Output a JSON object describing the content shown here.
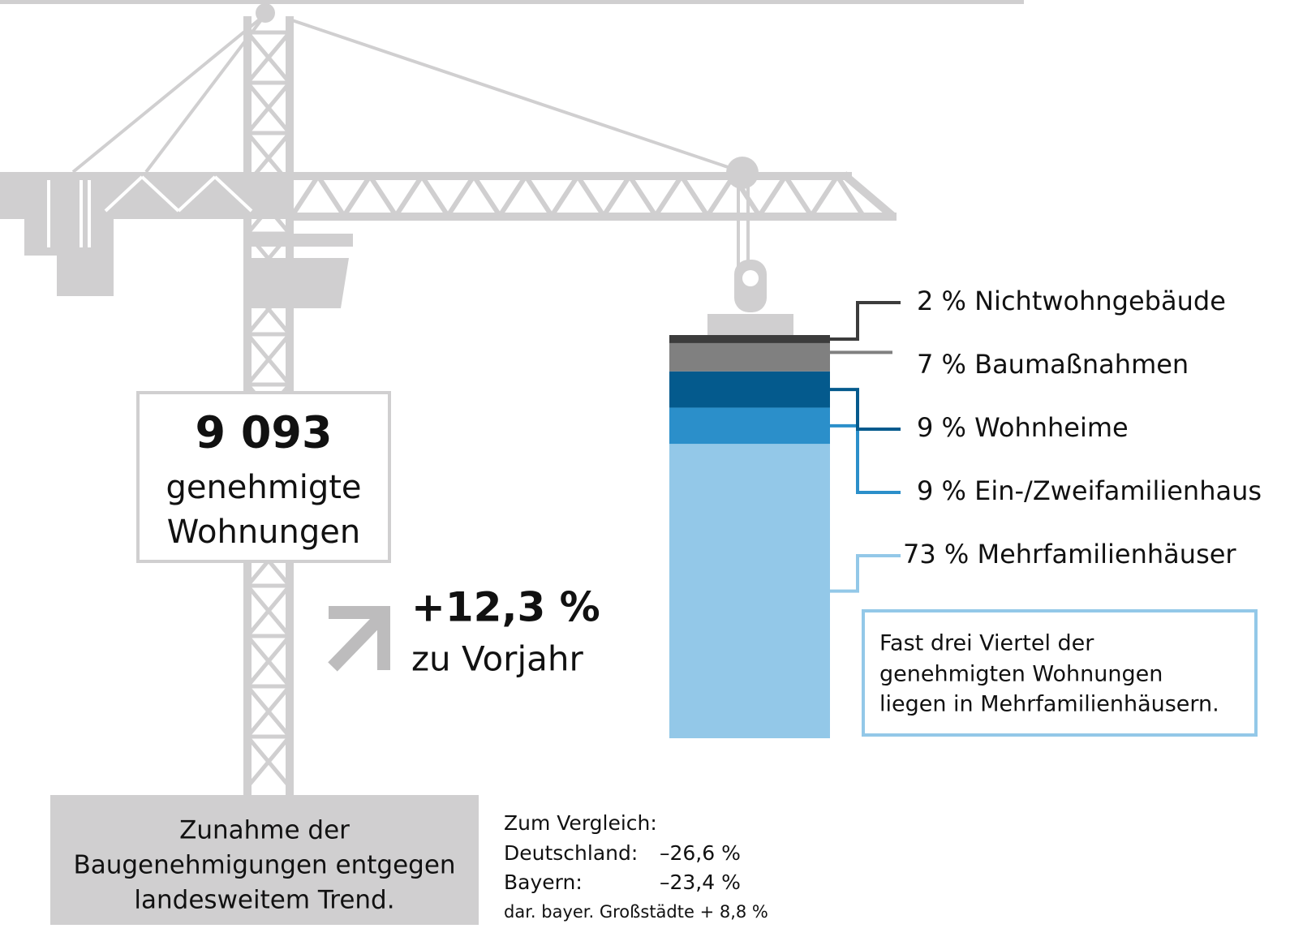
{
  "chart_data": {
    "type": "stacked-bar",
    "ylim": [
      0,
      100
    ],
    "series": [
      {
        "name": "Mehrfamilienhäuser",
        "color": "#93c8e8",
        "values": [
          73
        ],
        "value_labels": [
          "73 %"
        ]
      },
      {
        "name": "Ein-/Zweifamilienhaus",
        "color": "#2b8fca",
        "values": [
          9
        ],
        "value_labels": [
          "9 %"
        ]
      },
      {
        "name": "Wohnheime",
        "color": "#045a8d",
        "values": [
          9
        ],
        "value_labels": [
          "9 %"
        ]
      },
      {
        "name": "Baumaßnahmen",
        "color": "#808080",
        "values": [
          7
        ],
        "value_labels": [
          "7 %"
        ]
      },
      {
        "name": "Nichtwohngebäude",
        "color": "#3c3c3c",
        "values": [
          2
        ],
        "value_labels": [
          "2 %"
        ]
      }
    ]
  },
  "infographic": {
    "total": {
      "number": "9 093",
      "lines": [
        "genehmigte",
        "Wohnungen"
      ]
    },
    "change": {
      "value": "+12,3 %",
      "label": "zu Vorjahr"
    },
    "note": [
      "Fast drei Viertel der",
      "genehmigten Wohnungen",
      "liegen in Mehrfamilienhäusern."
    ],
    "trend": [
      "Zunahme der",
      "Baugenehmigungen entgegen",
      "landesweitem Trend."
    ],
    "comparison": {
      "title": "Zum Vergleich:",
      "rows": [
        [
          "Deutschland:",
          "–26,6 %"
        ],
        [
          "Bayern:",
          "–23,4 %"
        ]
      ],
      "footnote": "dar. bayer. Großstädte + 8,8 %"
    }
  }
}
